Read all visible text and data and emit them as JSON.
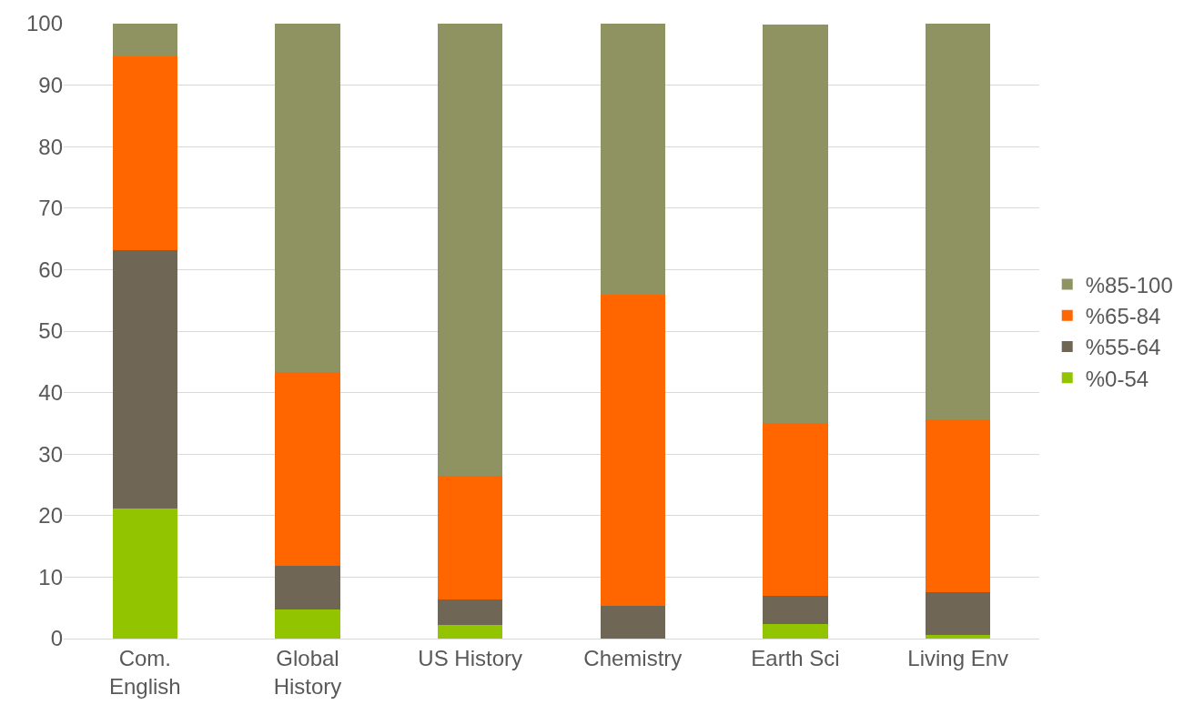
{
  "chart_data": {
    "type": "bar",
    "stacked": true,
    "categories": [
      "Com.\nEnglish",
      "Global\nHistory",
      "US History",
      "Chemistry",
      "Earth Sci",
      "Living Env"
    ],
    "series": [
      {
        "name": "%0-54",
        "color": "#92c500",
        "values": [
          21.1,
          4.7,
          2.2,
          0,
          2.3,
          0.6
        ]
      },
      {
        "name": "%55-64",
        "color": "#706656",
        "values": [
          42.1,
          7.2,
          4.1,
          5.4,
          4.7,
          6.9
        ]
      },
      {
        "name": "%65-84",
        "color": "#ff6600",
        "values": [
          31.5,
          31.4,
          20.2,
          50.5,
          28.1,
          28.1
        ]
      },
      {
        "name": "%85-100",
        "color": "#8f9362",
        "values": [
          5.3,
          56.7,
          73.5,
          44.1,
          64.8,
          64.4
        ]
      }
    ],
    "ylim": [
      0,
      100
    ],
    "yticks": [
      0,
      10,
      20,
      30,
      40,
      50,
      60,
      70,
      80,
      90,
      100
    ],
    "grid": "y",
    "legend": "right"
  }
}
